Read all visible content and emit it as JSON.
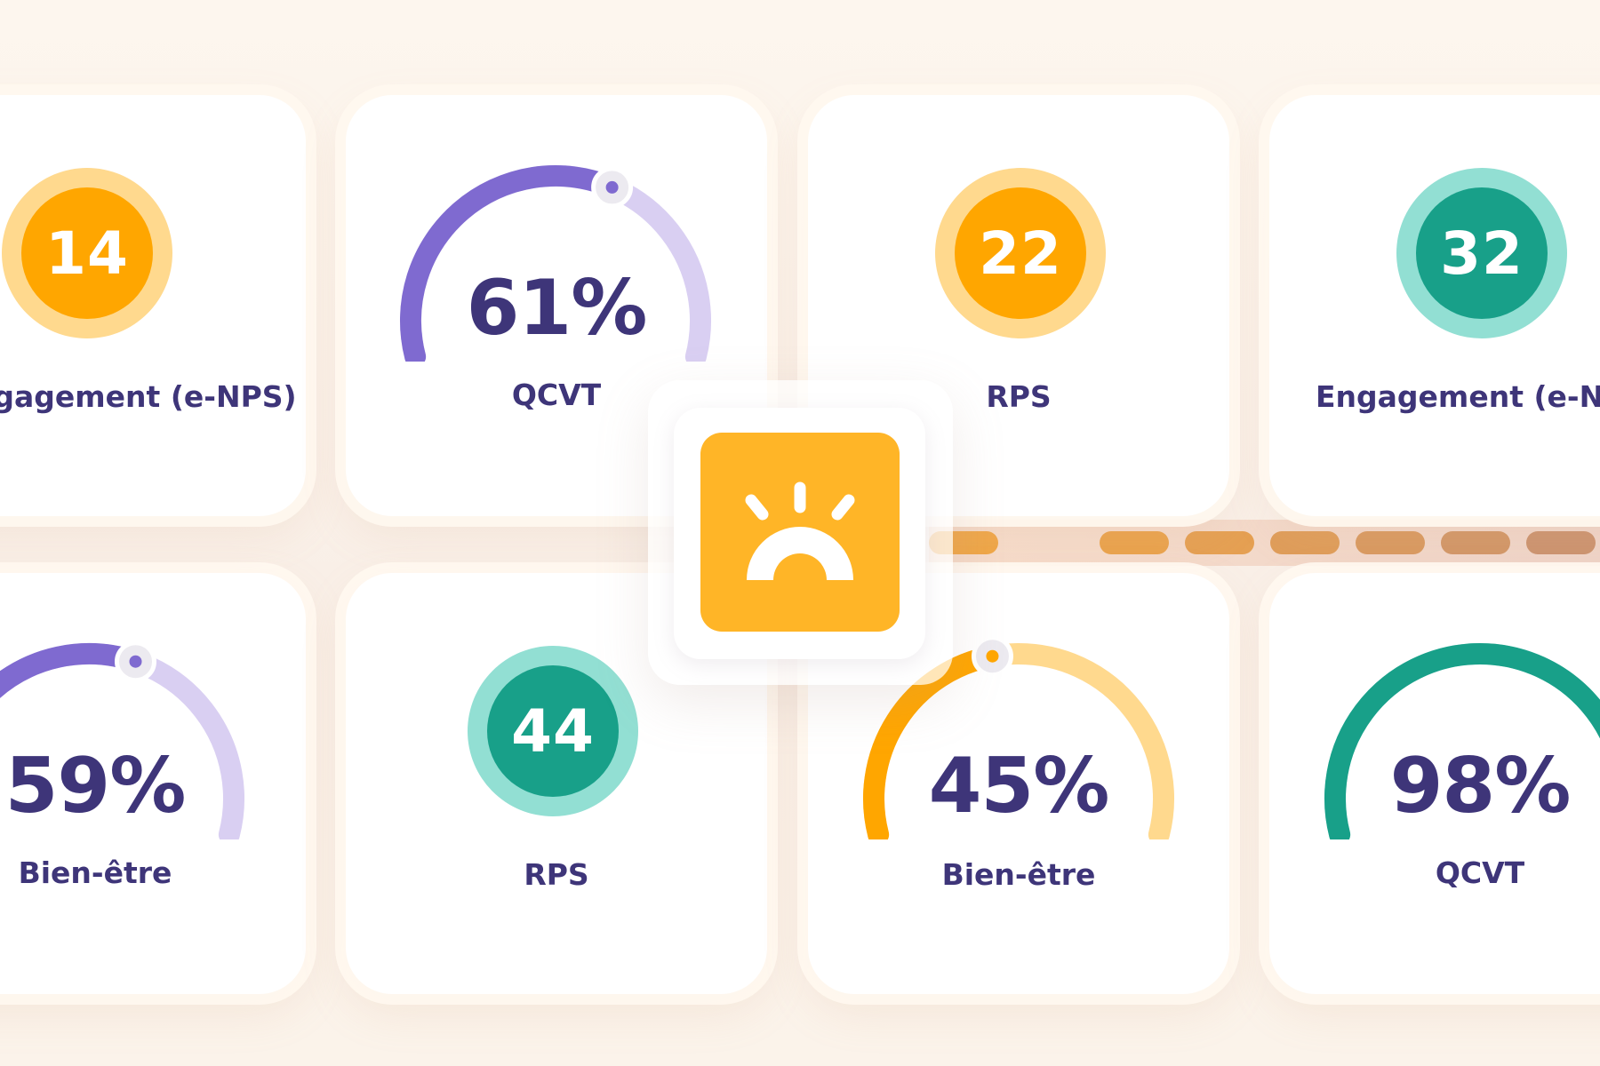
{
  "colors": {
    "purple": "#7f6ad0",
    "purple_light": "#d9cff2",
    "orange": "#ffa600",
    "orange_light": "#ffd98e",
    "teal": "#18a089",
    "teal_light": "#92dfd3",
    "navy_text": "#3e3579",
    "logo_yellow": "#ffb527"
  },
  "cards": {
    "engagement_left": {
      "label": "Engagement (e-NPS)",
      "value": "14"
    },
    "qcvt_top": {
      "label": "QCVT",
      "value": "61%",
      "percent": 61
    },
    "rps_top": {
      "label": "RPS",
      "value": "22"
    },
    "engagement_right": {
      "label": "Engagement (e-NPS)",
      "value": "32"
    },
    "bienetre_left": {
      "label": "Bien-être",
      "value": "59%",
      "percent": 59
    },
    "rps_bottom": {
      "label": "RPS",
      "value": "44"
    },
    "bienetre_right": {
      "label": "Bien-être",
      "value": "45%",
      "percent": 45
    },
    "qcvt_bottom": {
      "label": "QCVT",
      "value": "98%",
      "percent": 98
    }
  },
  "logo": {
    "icon": "sunrise-icon"
  }
}
